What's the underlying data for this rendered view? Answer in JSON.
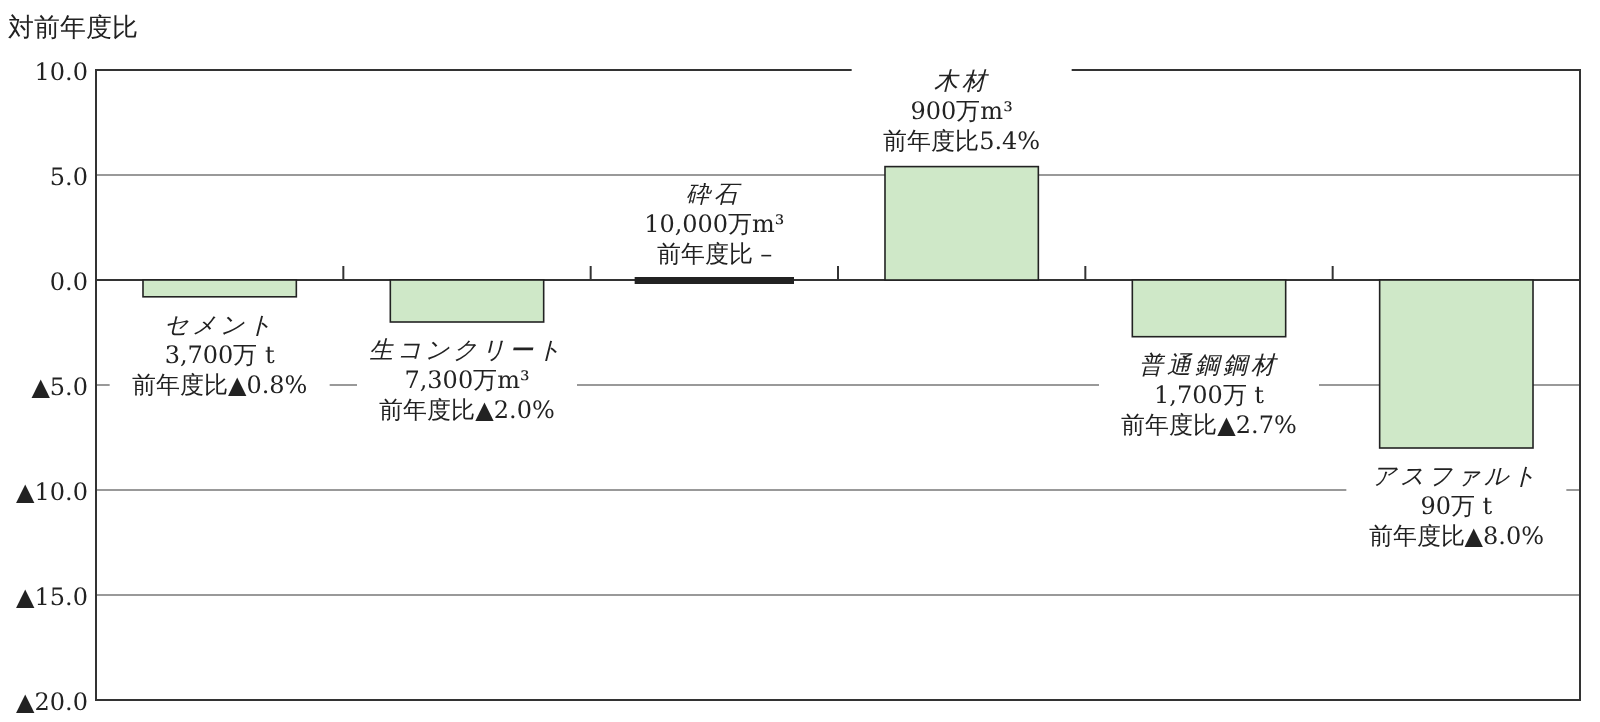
{
  "chart_data": {
    "type": "bar",
    "ylabel": "対前年度比",
    "categories": [
      "セメント",
      "生コンクリート",
      "砕石",
      "木材",
      "普通鋼鋼材",
      "アスファルト"
    ],
    "values": [
      -0.8,
      -2.0,
      0,
      5.4,
      -2.7,
      -8.0
    ],
    "annotations": [
      {
        "text": "3,700万 t\n前年度比▲0.8%",
        "x": "セメント",
        "y": -0.8
      },
      {
        "text": "7,300万m³\n前年度比▲2.0%",
        "x": "生コンクリート",
        "y": -2.0
      },
      {
        "text": "10,000万m³\n前年度比 –",
        "x": "砕石",
        "y": 0
      },
      {
        "text": "900万m³\n前年度比5.4%",
        "x": "木材",
        "y": 5.4
      },
      {
        "text": "1,700万 t\n前年度比▲2.7%",
        "x": "普通鋼鋼材",
        "y": -2.7
      },
      {
        "text": "90万 t\n前年度比▲8.0%",
        "x": "アスファルト",
        "y": -8.0
      }
    ],
    "color": "#cfe8c8",
    "ylim": [
      -20,
      10
    ],
    "yticks": [
      {
        "value": 10,
        "label": "10.0"
      },
      {
        "value": 5,
        "label": "5.0"
      },
      {
        "value": 0,
        "label": "0.0"
      },
      {
        "value": -5,
        "label": "▲5.0"
      },
      {
        "value": -10,
        "label": "▲10.0"
      },
      {
        "value": -15,
        "label": "▲15.0"
      },
      {
        "value": -20,
        "label": "▲20.0"
      }
    ],
    "grid": "y"
  }
}
